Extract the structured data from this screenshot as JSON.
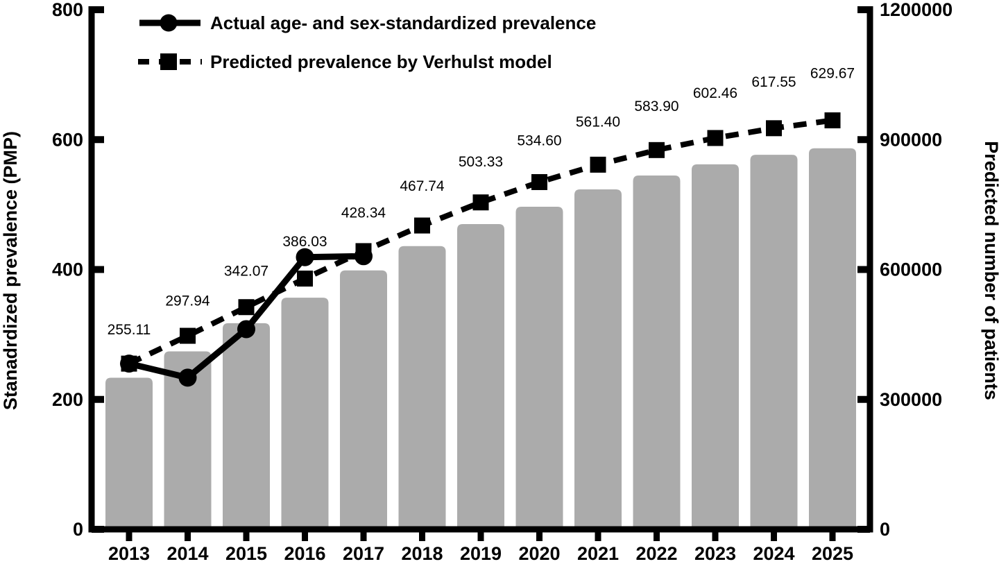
{
  "figure": {
    "background": "#ffffff",
    "ink_color": "#000000",
    "bar_color": "#ababab"
  },
  "chart_data": {
    "type": "bar",
    "title": "",
    "grid": false,
    "categories": [
      "2013",
      "2014",
      "2015",
      "2016",
      "2017",
      "2018",
      "2019",
      "2020",
      "2021",
      "2022",
      "2023",
      "2024",
      "2025"
    ],
    "left_axis": {
      "label": "Stanadrdized prevalence (PMP)",
      "ticks": [
        "0",
        "200",
        "400",
        "600",
        "800"
      ],
      "tick_values": [
        0,
        200,
        400,
        600,
        800
      ],
      "range": [
        0,
        800
      ]
    },
    "right_axis": {
      "label": "Predicted number of patients",
      "ticks": [
        "0",
        "300000",
        "600000",
        "900000",
        "1200000"
      ],
      "tick_values": [
        0,
        300000,
        600000,
        900000,
        1200000
      ],
      "range": [
        0,
        1200000
      ]
    },
    "series": [
      {
        "name": "Predicted number of patients",
        "type": "bar",
        "axis": "right",
        "color": "#ababab",
        "values": [
          350000,
          411000,
          476000,
          535000,
          598000,
          654000,
          705000,
          745000,
          785000,
          817000,
          843000,
          865000,
          880000
        ],
        "values_note": "bars carry no printed labels; values estimated from bar heights against the right axis"
      },
      {
        "name": "Actual age- and sex-standardized prevalence",
        "type": "line",
        "style": "solid",
        "marker": "circle",
        "axis": "left",
        "years": [
          2013,
          2014,
          2015,
          2016,
          2017
        ],
        "values": [
          255.1,
          233.5,
          308.2,
          419.0,
          420.5
        ],
        "values_note": "no printed labels; values estimated from marker positions against the left axis"
      },
      {
        "name": "Predicted prevalence by Verhulst model",
        "type": "line",
        "style": "dashed",
        "marker": "square",
        "axis": "left",
        "years": [
          2013,
          2014,
          2015,
          2016,
          2017,
          2018,
          2019,
          2020,
          2021,
          2022,
          2023,
          2024,
          2025
        ],
        "values": [
          255.11,
          297.94,
          342.07,
          386.03,
          428.34,
          467.74,
          503.33,
          534.6,
          561.4,
          583.9,
          602.46,
          617.55,
          629.67
        ],
        "point_labels": [
          "255.11",
          "297.94",
          "342.07",
          "386.03",
          "428.34",
          "467.74",
          "503.33",
          "534.60",
          "561.40",
          "583.90",
          "602.46",
          "617.55",
          "629.67"
        ]
      }
    ],
    "legend": {
      "position": "top-left-inside",
      "entries": [
        {
          "label": "Actual age- and sex-standardized prevalence",
          "marker": "circle",
          "line": "solid"
        },
        {
          "label": "Predicted prevalence by Verhulst model",
          "marker": "square",
          "line": "dashed"
        }
      ]
    }
  }
}
